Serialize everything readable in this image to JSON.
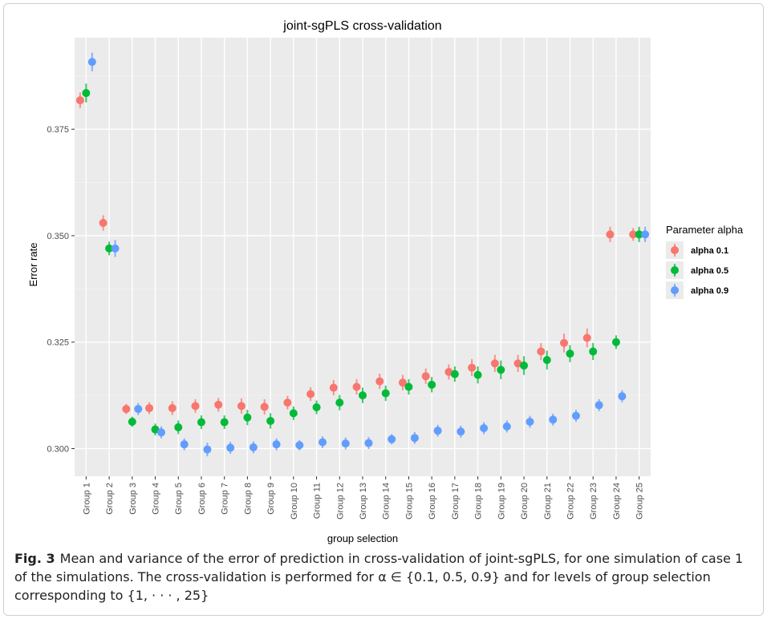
{
  "figure": {
    "caption_label": "Fig. 3",
    "caption_text": "Mean and variance of the error of prediction in cross-validation of joint-sgPLS, for one simulation of case 1 of the simulations. The cross-validation is performed for α ∈ {0.1, 0.5, 0.9} and for levels of group selection corresponding to {1, · · · , 25}"
  },
  "colors": {
    "panel": "#ebebeb",
    "grid_major": "#ffffff",
    "grid_minor": "#f3f3f3",
    "alpha_0_1": "#f8766d",
    "alpha_0_5": "#00ba38",
    "alpha_0_9": "#619cff"
  },
  "chart_data": {
    "type": "scatter",
    "title": "joint-sgPLS cross-validation",
    "xlabel": "group selection",
    "ylabel": "Error rate",
    "categories": [
      "Group 1",
      "Group 2",
      "Group 3",
      "Group 4",
      "Group 5",
      "Group 6",
      "Group 7",
      "Group 8",
      "Group 9",
      "Group 10",
      "Group 11",
      "Group 12",
      "Group 13",
      "Group 14",
      "Group 15",
      "Group 16",
      "Group 17",
      "Group 18",
      "Group 19",
      "Group 20",
      "Group 21",
      "Group 22",
      "Group 23",
      "Group 24",
      "Group 25"
    ],
    "yticks": [
      0.3,
      0.325,
      0.35,
      0.375
    ],
    "ytick_labels": [
      "0.300",
      "0.325",
      "0.350",
      "0.375"
    ],
    "ylim": [
      0.2935,
      0.3965
    ],
    "grid": true,
    "legend": {
      "title": "Parameter alpha",
      "position": "right"
    },
    "series": [
      {
        "name": "alpha 0.1",
        "color": "#f8766d",
        "values": [
          0.3818,
          0.353,
          0.3093,
          0.3095,
          0.3095,
          0.31,
          0.3103,
          0.31,
          0.3098,
          0.3108,
          0.3128,
          0.3143,
          0.3145,
          0.3158,
          0.3155,
          0.317,
          0.318,
          0.319,
          0.32,
          0.32,
          0.3228,
          0.3248,
          0.326,
          0.3503,
          0.3503
        ],
        "errors": [
          0.0018,
          0.0018,
          0.0012,
          0.0014,
          0.0016,
          0.0016,
          0.0016,
          0.0018,
          0.0018,
          0.0016,
          0.0016,
          0.0018,
          0.0018,
          0.0018,
          0.0018,
          0.0018,
          0.0018,
          0.002,
          0.002,
          0.002,
          0.002,
          0.0022,
          0.0022,
          0.0018,
          0.0015
        ]
      },
      {
        "name": "alpha 0.5",
        "color": "#00ba38",
        "values": [
          0.3835,
          0.347,
          0.3063,
          0.3045,
          0.305,
          0.3062,
          0.3062,
          0.3073,
          0.3065,
          0.3083,
          0.3097,
          0.3108,
          0.3125,
          0.313,
          0.3145,
          0.315,
          0.3175,
          0.3173,
          0.3185,
          0.3195,
          0.3208,
          0.3223,
          0.3228,
          0.325,
          0.3503
        ],
        "errors": [
          0.0022,
          0.0016,
          0.0012,
          0.0014,
          0.0016,
          0.0016,
          0.0016,
          0.0018,
          0.0018,
          0.0016,
          0.0016,
          0.0018,
          0.0018,
          0.0018,
          0.0018,
          0.0018,
          0.0018,
          0.002,
          0.0022,
          0.0022,
          0.0022,
          0.002,
          0.002,
          0.0016,
          0.0018
        ]
      },
      {
        "name": "alpha 0.9",
        "color": "#619cff",
        "values": [
          0.3908,
          0.347,
          0.3093,
          0.3038,
          0.301,
          0.2998,
          0.3002,
          0.3003,
          0.301,
          0.3008,
          0.3015,
          0.3012,
          0.3013,
          0.3022,
          0.3025,
          0.3042,
          0.304,
          0.3048,
          0.3052,
          0.3063,
          0.3068,
          0.3077,
          0.3102,
          0.3123,
          0.3503
        ],
        "errors": [
          0.0022,
          0.002,
          0.0014,
          0.0014,
          0.0014,
          0.0016,
          0.0014,
          0.0014,
          0.0014,
          0.0012,
          0.0014,
          0.0014,
          0.0014,
          0.0012,
          0.0014,
          0.0014,
          0.0014,
          0.0014,
          0.0014,
          0.0014,
          0.0014,
          0.0014,
          0.0014,
          0.0014,
          0.0018
        ]
      }
    ]
  }
}
